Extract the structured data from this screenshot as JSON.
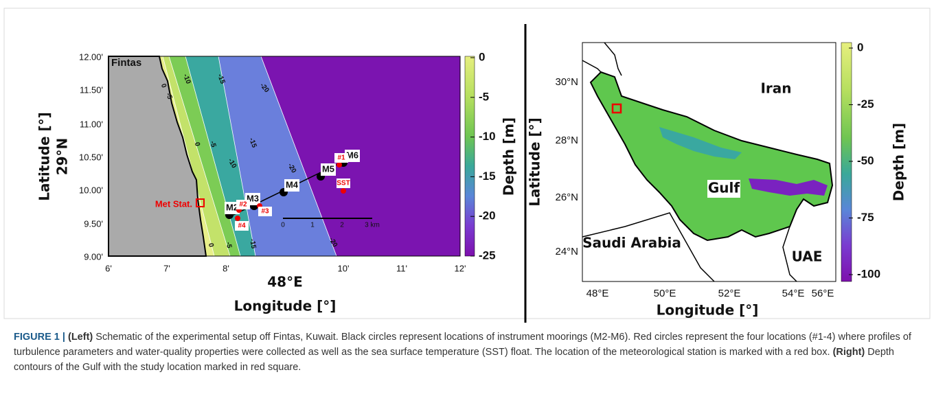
{
  "left_panel": {
    "place_label": "Fintas",
    "y_ticks": [
      "12.00'",
      "11.50'",
      "11.00'",
      "10.50'",
      "10.00'",
      "9.50'",
      "9.00'"
    ],
    "y_axis_sub": "29°N",
    "y_axis_title": "Latitude [°]",
    "x_ticks": [
      "6'",
      "7'",
      "8'",
      "10'",
      "11'",
      "12'"
    ],
    "x_axis_sub": "48°E",
    "x_axis_title": "Longitude [°]",
    "contour_labels": [
      "0",
      "-5",
      "-10",
      "-15",
      "-20",
      "0",
      "-5",
      "-10",
      "-15",
      "-20",
      "0",
      "-5",
      "-15",
      "-20"
    ],
    "moorings": [
      "M2",
      "M3",
      "M4",
      "M5",
      "M6"
    ],
    "stations": [
      "#1",
      "#2",
      "#3",
      "#4",
      "SST"
    ],
    "met_label": "Met Stat.",
    "scale_labels": [
      "0",
      "1",
      "2",
      "3 km"
    ],
    "colorbar": {
      "title": "Depth [m]",
      "ticks": [
        0,
        -5,
        -10,
        -15,
        -20,
        -25
      ]
    }
  },
  "right_panel": {
    "y_ticks": [
      "30°N",
      "28°N",
      "26°N",
      "24°N"
    ],
    "y_axis_title": "Latitude [°]",
    "x_ticks": [
      "48°E",
      "50°E",
      "52°E",
      "54°E",
      "56°E"
    ],
    "x_axis_title": "Longitude [°]",
    "region_labels": [
      "Iran",
      "Gulf",
      "Saudi Arabia",
      "UAE"
    ],
    "colorbar": {
      "title": "Depth [m]",
      "ticks": [
        0,
        -25,
        -50,
        -75,
        -100
      ]
    }
  },
  "caption": {
    "figure_label": "FIGURE 1 |",
    "left_tag": "(Left)",
    "left_text": "Schematic of the experimental setup off Fintas, Kuwait. Black circles represent locations of instrument moorings (M2-M6). Red circles represent the four locations (#1-4) where profiles of turbulence parameters and water-quality properties were collected as well as the sea surface temperature (SST) float. The location of the meteorological station is marked with a red box.",
    "right_tag": "(Right)",
    "right_text": "Depth contours of the Gulf with the study location marked in red square."
  }
}
